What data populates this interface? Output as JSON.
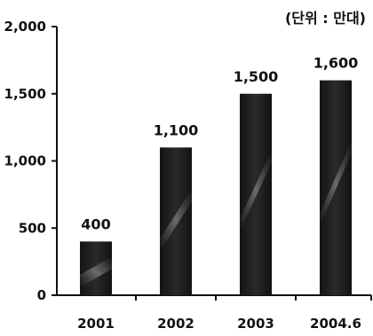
{
  "chart_data": {
    "type": "bar",
    "categories": [
      "2001",
      "2002",
      "2003",
      "2004.6"
    ],
    "values": [
      400,
      1100,
      1500,
      1600
    ],
    "data_labels": [
      "400",
      "1,100",
      "1,500",
      "1,600"
    ],
    "y_ticks": [
      0,
      500,
      1000,
      1500,
      2000
    ],
    "y_tick_labels": [
      "0",
      "500",
      "1,000",
      "1,500",
      "2,000"
    ],
    "ylim": [
      0,
      2000
    ],
    "unit_note": "(단위 : 만대)",
    "grid": false,
    "bar_color": "#1e1e1e",
    "title": "",
    "xlabel": "",
    "ylabel": ""
  }
}
